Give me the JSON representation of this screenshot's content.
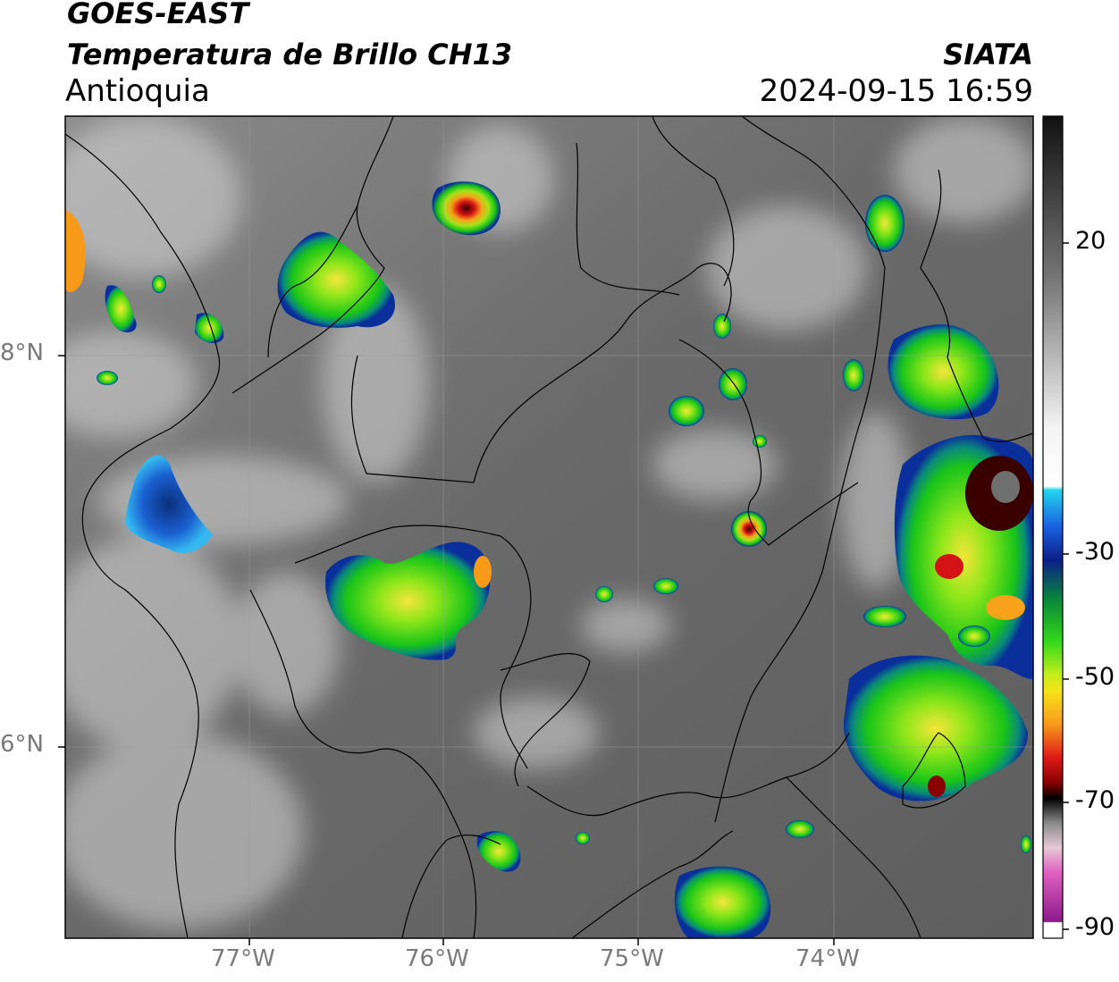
{
  "header": {
    "satellite": "GOES-EAST",
    "product": "Temperatura de Brillo CH13",
    "region": "Antioquia",
    "agency": "SIATA",
    "datetime": "2024-09-15 16:59"
  },
  "axes": {
    "longitude_ticks": [
      "77°W",
      "76°W",
      "75°W",
      "74°W"
    ],
    "latitude_ticks": [
      "8°N",
      "6°N"
    ]
  },
  "colorbar": {
    "ticks": [
      "20",
      "-30",
      "-50",
      "-70",
      "-90"
    ]
  }
}
